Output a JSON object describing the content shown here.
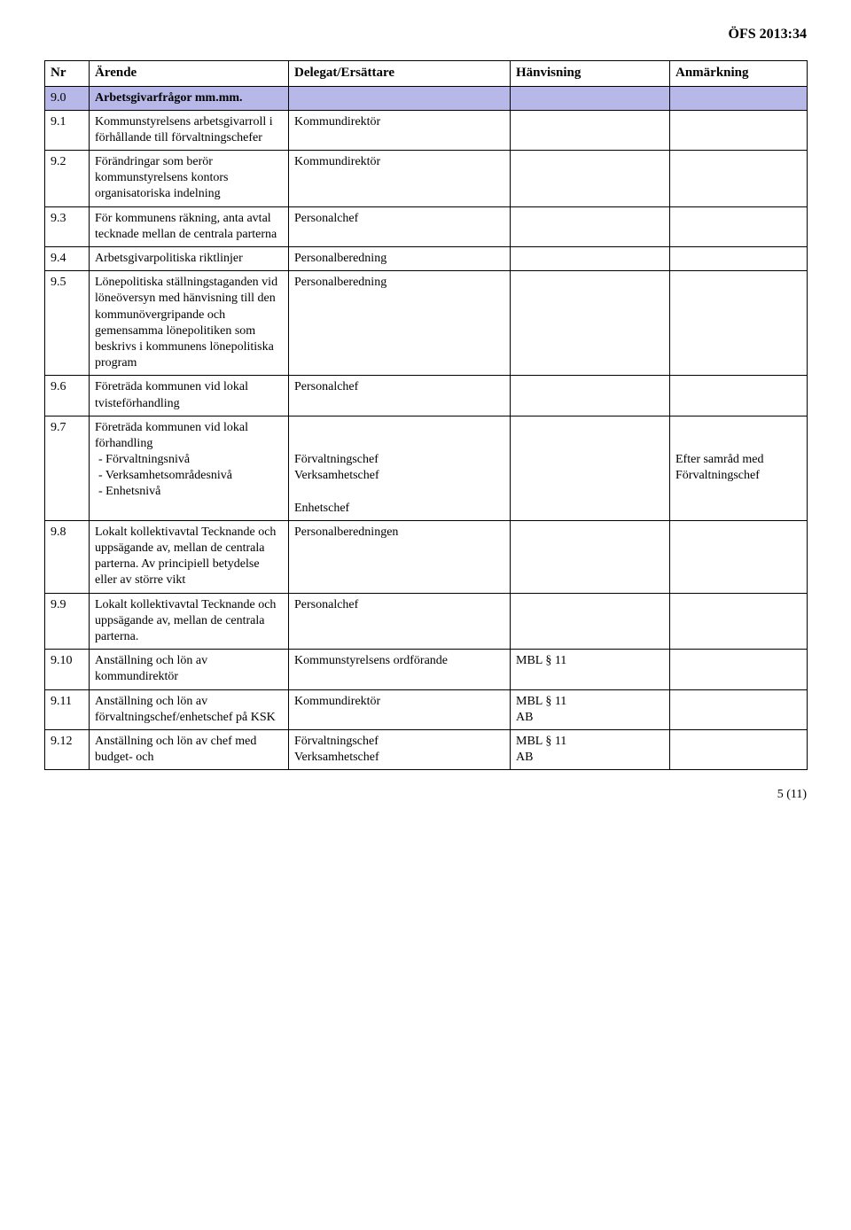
{
  "doc_id": "ÖFS 2013:34",
  "headers": {
    "nr": "Nr",
    "arende": "Ärende",
    "delegat": "Delegat/Ersättare",
    "hanv": "Hänvisning",
    "anm": "Anmärkning"
  },
  "section": {
    "nr": "9.0",
    "title": "Arbetsgivarfrågor mm.mm."
  },
  "rows": [
    {
      "nr": "9.1",
      "arende": "Kommunstyrelsens arbetsgivarroll i förhållande till förvaltningschefer",
      "delegat": "Kommundirektör",
      "hanv": "",
      "anm": ""
    },
    {
      "nr": "9.2",
      "arende": "Förändringar som berör kommunstyrelsens kontors organisatoriska indelning",
      "delegat": "Kommundirektör",
      "hanv": "",
      "anm": ""
    },
    {
      "nr": "9.3",
      "arende": "För kommunens räkning, anta avtal tecknade mellan de centrala parterna",
      "delegat": "Personalchef",
      "hanv": "",
      "anm": ""
    },
    {
      "nr": "9.4",
      "arende": "Arbetsgivarpolitiska riktlinjer",
      "delegat": "Personalberedning",
      "hanv": "",
      "anm": ""
    },
    {
      "nr": "9.5",
      "arende": "Lönepolitiska ställningstaganden vid löneöversyn med hänvisning till den kommunövergripande och gemensamma lönepolitiken som beskrivs i kommunens lönepolitiska program",
      "delegat": "Personalberedning",
      "hanv": "",
      "anm": ""
    },
    {
      "nr": "9.6",
      "arende": "Företräda kommunen vid lokal tvisteförhandling",
      "delegat": "Personalchef",
      "hanv": "",
      "anm": ""
    },
    {
      "nr": "9.7",
      "arende_intro": "Företräda kommunen vid lokal förhandling",
      "arende_items": [
        "Förvaltningsnivå",
        "Verksamhetsområdesnivå",
        "Enhetsnivå"
      ],
      "delegat_lines": [
        "Förvaltningschef",
        "Verksamhetschef",
        "",
        "Enhetschef"
      ],
      "hanv": "",
      "anm": "Efter samråd med Förvaltningschef"
    },
    {
      "nr": "9.8",
      "arende": "Lokalt kollektivavtal Tecknande och uppsägande av, mellan de centrala parterna. Av principiell betydelse eller av större vikt",
      "delegat": "Personalberedningen",
      "hanv": "",
      "anm": ""
    },
    {
      "nr": "9.9",
      "arende": "Lokalt kollektivavtal Tecknande och uppsägande av, mellan de centrala parterna.",
      "delegat": "Personalchef",
      "hanv": "",
      "anm": ""
    },
    {
      "nr": "9.10",
      "arende": "Anställning och lön av kommundirektör",
      "delegat": "Kommunstyrelsens ordförande",
      "hanv": "MBL § 11",
      "anm": ""
    },
    {
      "nr": "9.11",
      "arende": "Anställning och lön av förvaltningschef/enhetschef på KSK",
      "delegat": "Kommundirektör",
      "hanv_lines": [
        "MBL § 11",
        "AB"
      ],
      "anm": ""
    },
    {
      "nr": "9.12",
      "arende": "Anställning och lön av chef med budget- och",
      "delegat_lines": [
        "Förvaltningschef",
        "Verksamhetschef"
      ],
      "hanv_lines": [
        "MBL § 11",
        "AB"
      ],
      "anm": ""
    }
  ],
  "page_num": "5 (11)"
}
